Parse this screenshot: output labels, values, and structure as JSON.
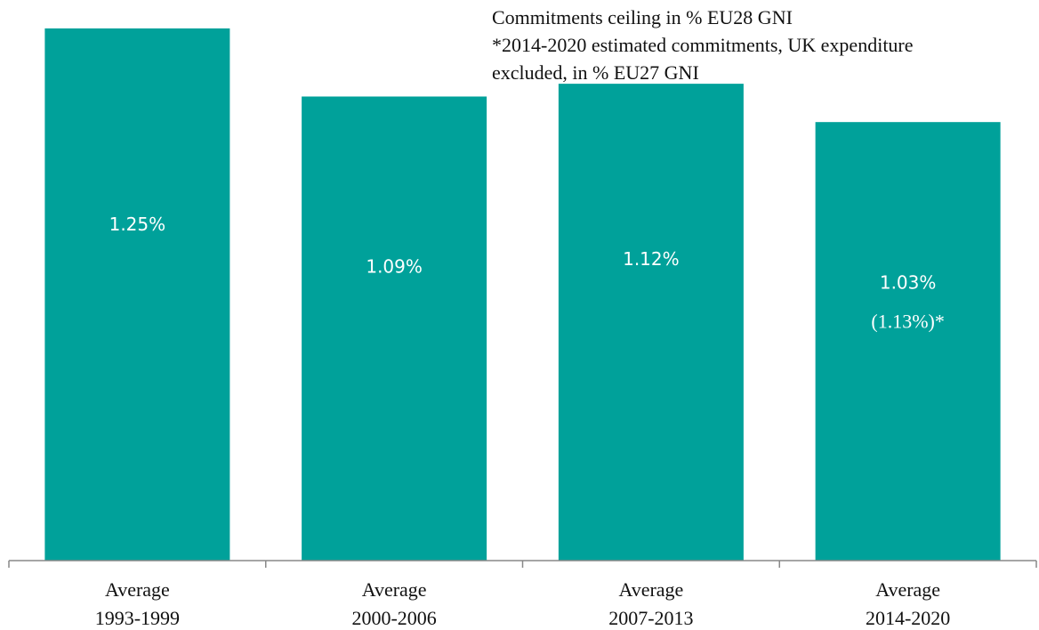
{
  "notes": {
    "line1": "Commitments ceiling in % EU28 GNI",
    "line2": "*2014-2020 estimated commitments, UK expenditure",
    "line3": "excluded, in % EU27 GNI"
  },
  "colors": {
    "bar": "#00a19a",
    "axis": "#888888"
  },
  "chart_data": {
    "type": "bar",
    "title": "",
    "xlabel": "",
    "ylabel": "",
    "grid": false,
    "categories": [
      [
        "Average",
        "1993-1999"
      ],
      [
        "Average",
        "2000-2006"
      ],
      [
        "Average",
        "2007-2013"
      ],
      [
        "Average",
        "2014-2020"
      ]
    ],
    "values": [
      1.25,
      1.09,
      1.12,
      1.03
    ],
    "data_labels": [
      "1.25%",
      "1.09%",
      "1.12%",
      "1.03%"
    ],
    "data_sublabels": [
      "",
      "",
      "",
      "(1.13%)*"
    ],
    "ylim": [
      0,
      1.3
    ]
  }
}
